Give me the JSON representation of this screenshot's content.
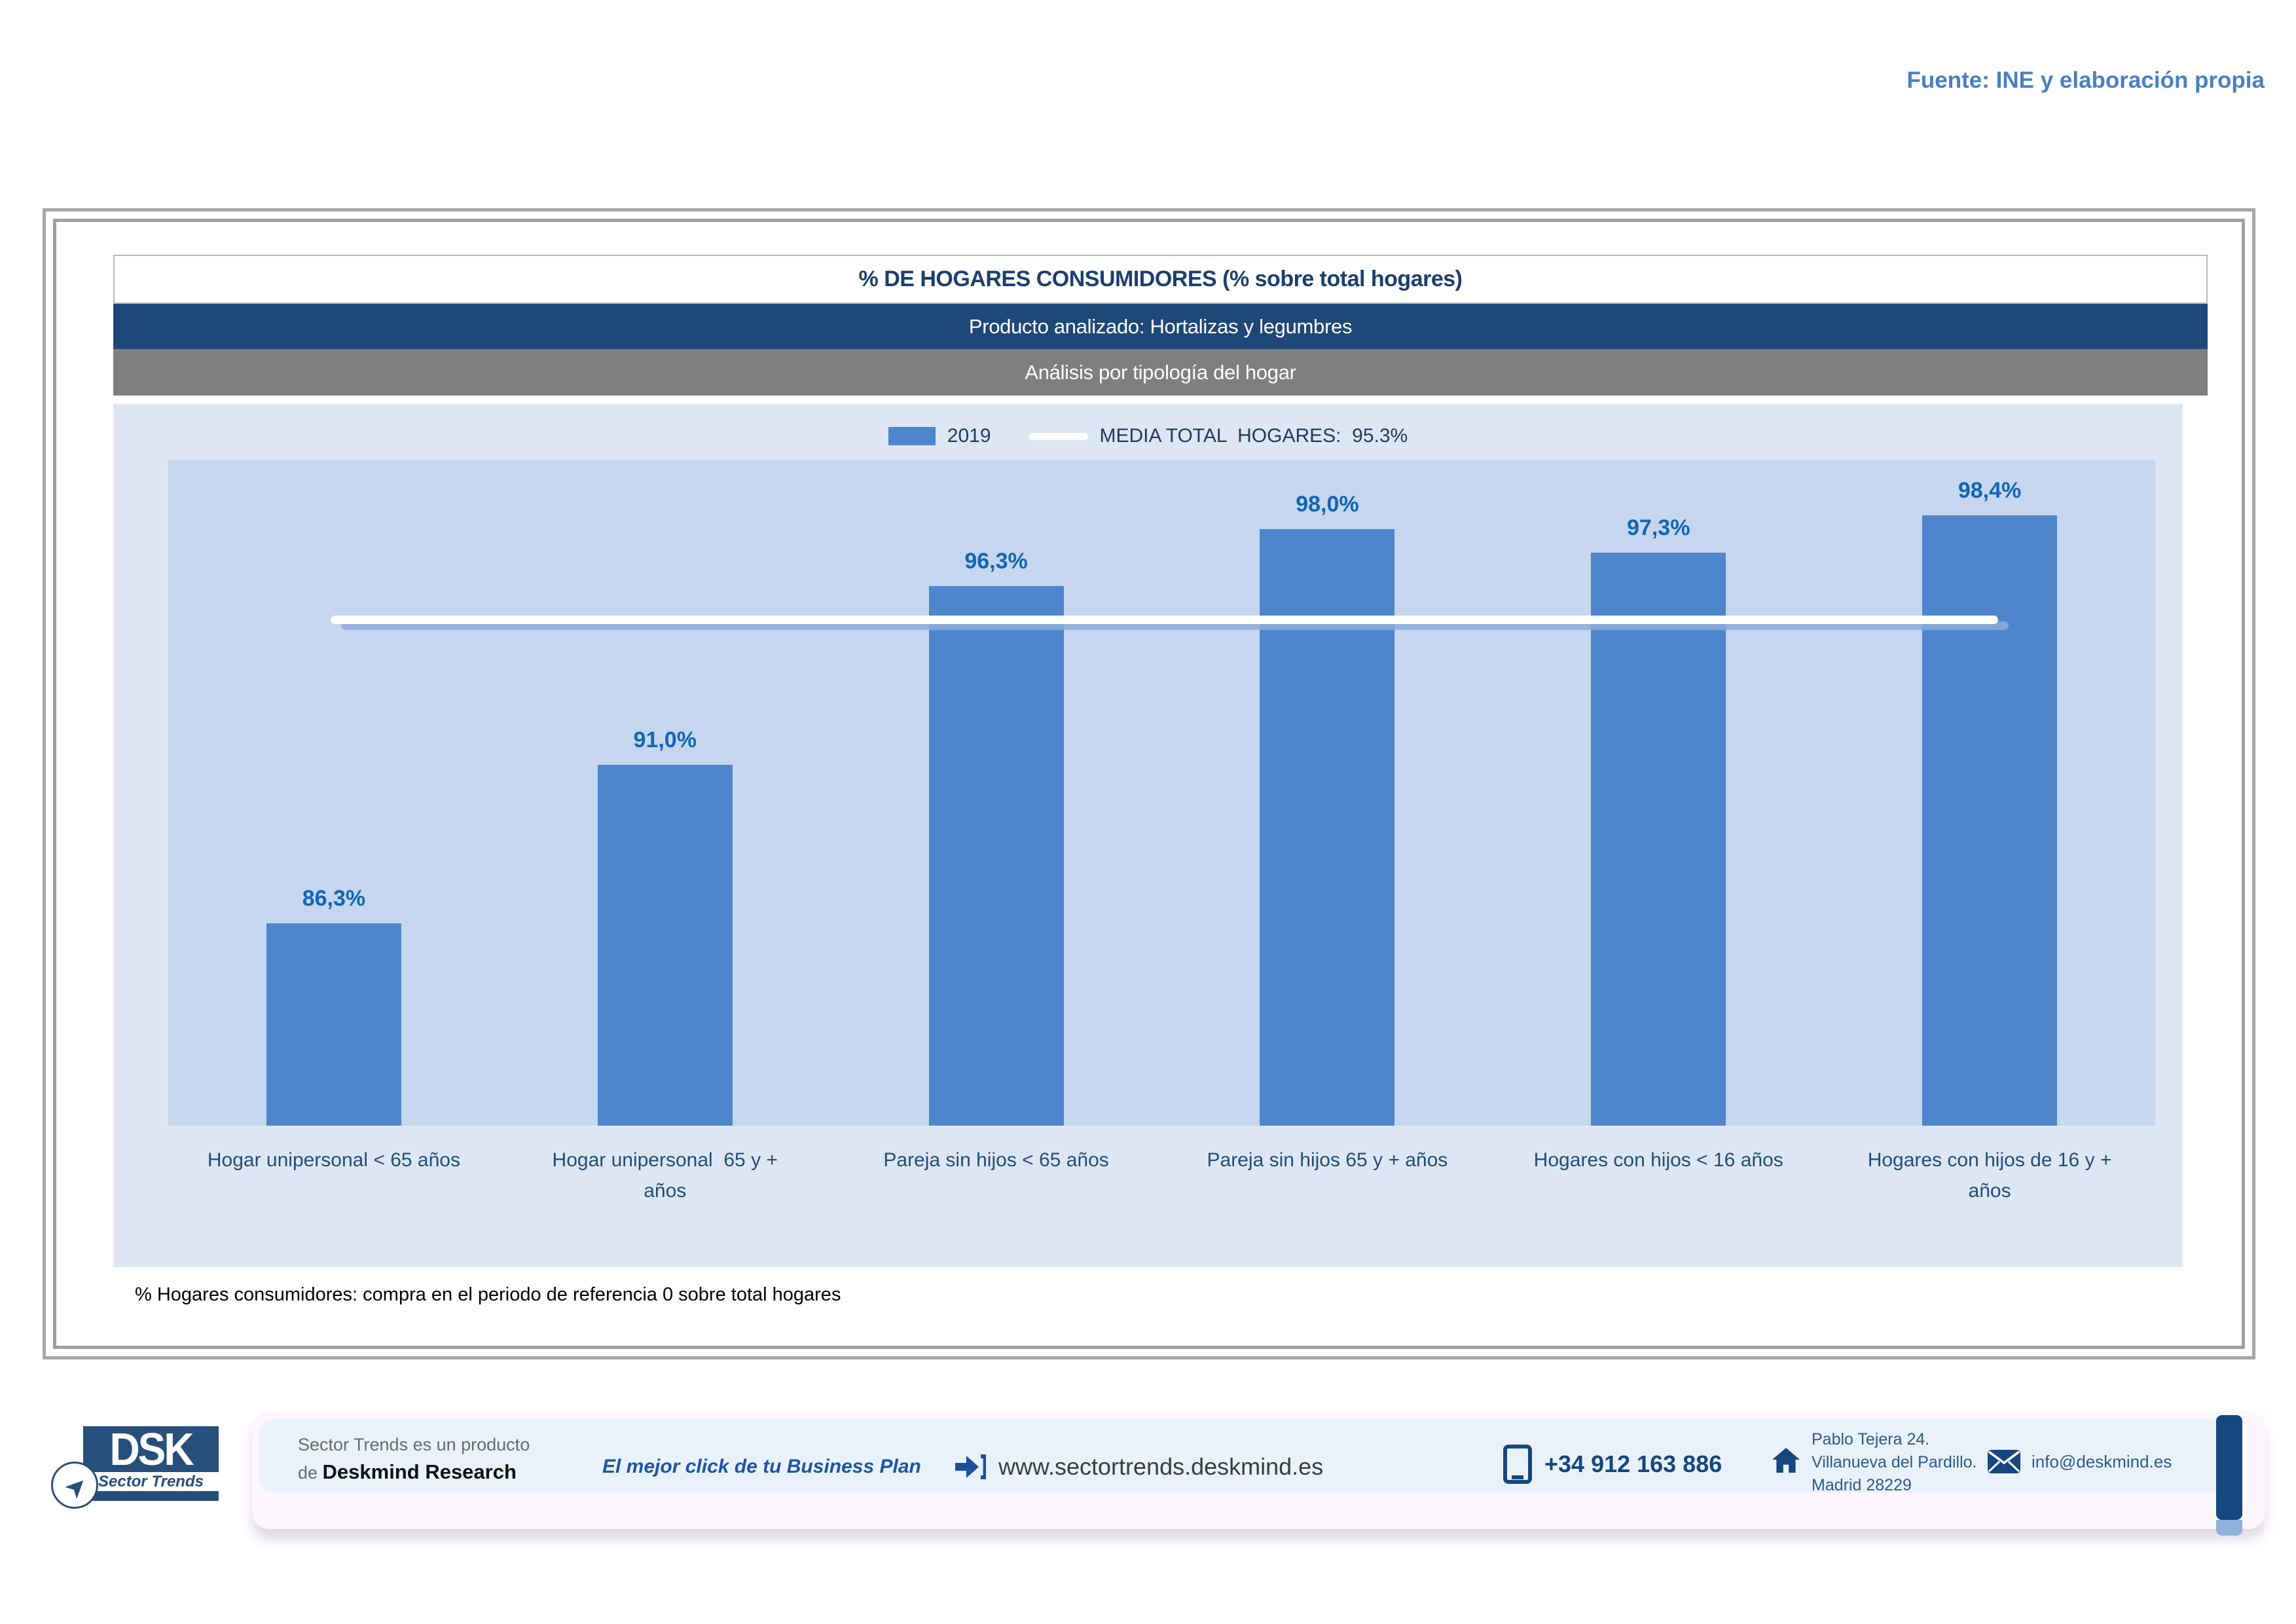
{
  "page": {
    "source_note": "Fuente: INE y elaboración propia",
    "footnote": "% Hogares consumidores: compra en el periodo de referencia 0 sobre total hogares"
  },
  "chart_data": {
    "type": "bar",
    "title": "% DE HOGARES CONSUMIDORES (% sobre total hogares)",
    "product_row": "Producto analizado: Hortalizas y legumbres",
    "analysis_row": "Análisis por tipología del hogar",
    "legend": {
      "series_label": "2019",
      "media_label": "MEDIA TOTAL  HOGARES:  95.3%"
    },
    "categories": [
      {
        "line1": "Hogar unipersonal < 65 años",
        "line2": ""
      },
      {
        "line1": "Hogar unipersonal  65 y +",
        "line2": "años"
      },
      {
        "line1": "Pareja sin hijos < 65 años",
        "line2": ""
      },
      {
        "line1": "Pareja sin hijos 65 y + años",
        "line2": ""
      },
      {
        "line1": "Hogares con hijos < 16 años",
        "line2": ""
      },
      {
        "line1": "Hogares con hijos de 16 y +",
        "line2": "años"
      }
    ],
    "values": [
      86.3,
      91.0,
      96.3,
      98.0,
      97.3,
      98.4
    ],
    "value_labels": [
      "86,3%",
      "91,0%",
      "96,3%",
      "98,0%",
      "97,3%",
      "98,4%"
    ],
    "series_year": "2019",
    "mean_value": 95.3,
    "axis": {
      "y_min": 80.3,
      "y_max": 100.05,
      "grid": false,
      "y_axis_visible": false
    },
    "layout": {
      "legend_position": "top-center",
      "mean_line_spans": "first-to-last-category-center"
    },
    "colors": {
      "bar": "#4e86cb",
      "plot_bg": "#c5d6ee",
      "chart_bg": "#dde7f3",
      "value_label": "#1166b4",
      "mean_line": "#ffffff",
      "title_band": "#1e4878",
      "analysis_band": "#7f7f7f"
    }
  },
  "footer": {
    "logo": {
      "dsk": "DSK",
      "sector_trends": "Sector Trends",
      "plane_icon": "paper-plane-icon"
    },
    "product_line1": "Sector Trends es un producto",
    "product_line2_prefix": "de ",
    "product_line2_brand": "Deskmind Research",
    "slogan": "El mejor click de tu Business Plan",
    "website": "www.sectortrends.deskmind.es",
    "phone": "+34 912 163 886",
    "address_line1": "Pablo Tejera 24.",
    "address_line2": "Villanueva del Pardillo.",
    "address_line3": "Madrid 28229",
    "email": "info@deskmind.es"
  }
}
